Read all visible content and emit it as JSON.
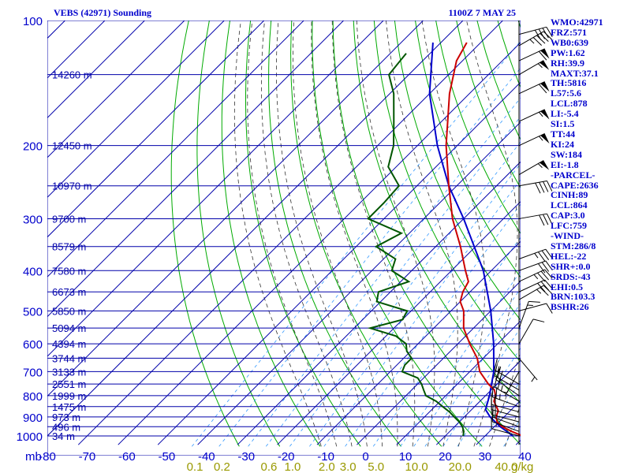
{
  "header": {
    "title": "VEBS (42971) Sounding",
    "time": "1100Z  7 MAY 25"
  },
  "indices": [
    "WMO:42971",
    "FRZ:571",
    "WB0:639",
    "PW:1.62",
    "RH:39.9",
    "MAXT:37.1",
    "TH:5816",
    "L57:5.6",
    "LCL:878",
    "LI:-5.4",
    "SI:1.5",
    "TT:44",
    "KI:24",
    "SW:184",
    "EI:-1.8",
    "-PARCEL-",
    "CAPE:2636",
    "CINH:89",
    "LCL:864",
    "CAP:3.0",
    "LFC:759",
    "-WIND-",
    "STM:286/8",
    "HEL:-22",
    "SHR+:0.0",
    "SRDS:-43",
    "EHI:0.5",
    "BRN:103.3",
    "BSHR:26"
  ],
  "colors": {
    "grid": "#0000aa",
    "isotherm": "#0000aa",
    "dry_adiabat": "#00aa00",
    "moist_adiabat": "#333333",
    "mixing_ratio": "#3399ff",
    "temperature": "#cc0000",
    "dewpoint": "#005500",
    "parcel": "#0000cc",
    "text": "#0000cc",
    "mixing_label": "#999900",
    "wind_barb": "#000000"
  },
  "chart_data": {
    "type": "skew-t",
    "title": "VEBS (42971) Sounding",
    "pressure_unit_label": "mb",
    "mixing_ratio_unit_label": "g/kg",
    "pressure_levels": [
      100,
      200,
      300,
      400,
      500,
      600,
      700,
      800,
      900,
      1000
    ],
    "pressure_tick_labels": [
      "100",
      "200",
      "300",
      "400",
      "500",
      "600",
      "700",
      "800",
      "900",
      "1000"
    ],
    "temperature_ticks": [
      -80,
      -70,
      -60,
      -50,
      -40,
      -30,
      -20,
      -10,
      0,
      10,
      20,
      30,
      40
    ],
    "temperature_tick_labels": [
      "-80",
      "-70",
      "-60",
      "-50",
      "-40",
      "-30",
      "-20",
      "-10",
      "0",
      "10",
      "20",
      "30",
      "40"
    ],
    "mixing_ratio_labels": [
      {
        "w": 0.1,
        "label": "0.1"
      },
      {
        "w": 0.2,
        "label": "0.2"
      },
      {
        "w": 0.6,
        "label": "0.6"
      },
      {
        "w": 1.0,
        "label": "1.0"
      },
      {
        "w": 2.0,
        "label": "2.0"
      },
      {
        "w": 3.0,
        "label": "3.0"
      },
      {
        "w": 5.0,
        "label": "5.0"
      },
      {
        "w": 10.0,
        "label": "10.0"
      },
      {
        "w": 20.0,
        "label": "20.0"
      },
      {
        "w": 40.0,
        "label": "40.0"
      }
    ],
    "height_labels": [
      {
        "p": 135,
        "label": "14260 m"
      },
      {
        "p": 200,
        "label": "12450 m"
      },
      {
        "p": 250,
        "label": "10970 m"
      },
      {
        "p": 300,
        "label": "9700 m"
      },
      {
        "p": 350,
        "label": "8579 m"
      },
      {
        "p": 400,
        "label": "7580 m"
      },
      {
        "p": 450,
        "label": "6673 m"
      },
      {
        "p": 500,
        "label": "5850 m"
      },
      {
        "p": 550,
        "label": "5094 m"
      },
      {
        "p": 600,
        "label": "4394 m"
      },
      {
        "p": 650,
        "label": "3744 m"
      },
      {
        "p": 700,
        "label": "3133 m"
      },
      {
        "p": 750,
        "label": "2551 m"
      },
      {
        "p": 800,
        "label": "1999 m"
      },
      {
        "p": 850,
        "label": "1475 m"
      },
      {
        "p": 900,
        "label": "973 m"
      },
      {
        "p": 950,
        "label": "496 m"
      },
      {
        "p": 1000,
        "label": "34 m"
      }
    ],
    "pressure_range": [
      100,
      1050
    ],
    "temperature_range_at_base": [
      -80,
      40
    ],
    "temperature_profile": [
      {
        "p": 1004,
        "t": 40.0
      },
      {
        "p": 975,
        "t": 35.5
      },
      {
        "p": 950,
        "t": 32.0
      },
      {
        "p": 925,
        "t": 29.5
      },
      {
        "p": 900,
        "t": 28.0
      },
      {
        "p": 870,
        "t": 27.0
      },
      {
        "p": 850,
        "t": 25.5
      },
      {
        "p": 825,
        "t": 23.5
      },
      {
        "p": 800,
        "t": 22.5
      },
      {
        "p": 775,
        "t": 20.8
      },
      {
        "p": 750,
        "t": 17.8
      },
      {
        "p": 700,
        "t": 12.5
      },
      {
        "p": 650,
        "t": 8.5
      },
      {
        "p": 600,
        "t": 3.0
      },
      {
        "p": 550,
        "t": -2.5
      },
      {
        "p": 500,
        "t": -6.8
      },
      {
        "p": 475,
        "t": -10.0
      },
      {
        "p": 450,
        "t": -11.8
      },
      {
        "p": 425,
        "t": -13.0
      },
      {
        "p": 400,
        "t": -16.5
      },
      {
        "p": 350,
        "t": -23.8
      },
      {
        "p": 300,
        "t": -32.8
      },
      {
        "p": 250,
        "t": -42.0
      },
      {
        "p": 200,
        "t": -52.8
      },
      {
        "p": 150,
        "t": -65.0
      },
      {
        "p": 125,
        "t": -71.5
      },
      {
        "p": 113,
        "t": -73.5
      }
    ],
    "dewpoint_profile": [
      {
        "p": 1000,
        "t": 24.5
      },
      {
        "p": 975,
        "t": 23.5
      },
      {
        "p": 950,
        "t": 22.0
      },
      {
        "p": 925,
        "t": 20.0
      },
      {
        "p": 900,
        "t": 17.5
      },
      {
        "p": 875,
        "t": 15.0
      },
      {
        "p": 850,
        "t": 12.0
      },
      {
        "p": 825,
        "t": 9.0
      },
      {
        "p": 800,
        "t": 5.0
      },
      {
        "p": 775,
        "t": 3.0
      },
      {
        "p": 750,
        "t": 1.0
      },
      {
        "p": 725,
        "t": -1.5
      },
      {
        "p": 700,
        "t": -7.0
      },
      {
        "p": 675,
        "t": -8.0
      },
      {
        "p": 650,
        "t": -8.0
      },
      {
        "p": 625,
        "t": -11.0
      },
      {
        "p": 600,
        "t": -13.0
      },
      {
        "p": 575,
        "t": -17.5
      },
      {
        "p": 550,
        "t": -26.0
      },
      {
        "p": 525,
        "t": -20.0
      },
      {
        "p": 500,
        "t": -21.0
      },
      {
        "p": 475,
        "t": -31.0
      },
      {
        "p": 450,
        "t": -33.0
      },
      {
        "p": 425,
        "t": -28.0
      },
      {
        "p": 400,
        "t": -35.0
      },
      {
        "p": 375,
        "t": -37.0
      },
      {
        "p": 350,
        "t": -45.0
      },
      {
        "p": 325,
        "t": -42.0
      },
      {
        "p": 300,
        "t": -54.0
      },
      {
        "p": 275,
        "t": -54.0
      },
      {
        "p": 250,
        "t": -54.5
      },
      {
        "p": 225,
        "t": -62.0
      },
      {
        "p": 200,
        "t": -66.0
      },
      {
        "p": 175,
        "t": -72.0
      },
      {
        "p": 150,
        "t": -79.0
      },
      {
        "p": 135,
        "t": -85.0
      },
      {
        "p": 120,
        "t": -86.0
      }
    ],
    "parcel_profile": [
      {
        "p": 1000,
        "t": 37.0
      },
      {
        "p": 950,
        "t": 31.5
      },
      {
        "p": 900,
        "t": 26.5
      },
      {
        "p": 864,
        "t": 23.5
      },
      {
        "p": 800,
        "t": 21.0
      },
      {
        "p": 700,
        "t": 16.0
      },
      {
        "p": 600,
        "t": 9.0
      },
      {
        "p": 500,
        "t": 0.0
      },
      {
        "p": 400,
        "t": -12.0
      },
      {
        "p": 300,
        "t": -30.0
      },
      {
        "p": 250,
        "t": -42.0
      },
      {
        "p": 200,
        "t": -55.0
      },
      {
        "p": 150,
        "t": -70.0
      },
      {
        "p": 113,
        "t": -82.0
      }
    ],
    "dry_adiabat_thetas": [
      240,
      250,
      260,
      270,
      280,
      290,
      300,
      310,
      320,
      330,
      340,
      350,
      360,
      370,
      380,
      390,
      400,
      410,
      420,
      430,
      440,
      450,
      460,
      470,
      480,
      490,
      500,
      510,
      520,
      530,
      540,
      550,
      560,
      570,
      580
    ],
    "moist_adiabat_temps_at_1000": [
      -12,
      -8,
      -4,
      0,
      4,
      8,
      12,
      16,
      20,
      24,
      28,
      32,
      36
    ],
    "mixing_ratios": [
      0.1,
      0.2,
      0.4,
      0.6,
      1.0,
      1.5,
      2.0,
      3.0,
      5.0,
      8.0,
      10.0,
      12.0,
      16.0,
      20.0,
      28.0,
      40.0
    ],
    "wind_barbs": [
      {
        "p": 1000,
        "dir": 285,
        "spd": 8
      },
      {
        "p": 975,
        "dir": 290,
        "spd": 10
      },
      {
        "p": 950,
        "dir": 290,
        "spd": 12
      },
      {
        "p": 925,
        "dir": 285,
        "spd": 15
      },
      {
        "p": 900,
        "dir": 285,
        "spd": 20
      },
      {
        "p": 875,
        "dir": 285,
        "spd": 22
      },
      {
        "p": 850,
        "dir": 290,
        "spd": 25
      },
      {
        "p": 825,
        "dir": 300,
        "spd": 25
      },
      {
        "p": 800,
        "dir": 305,
        "spd": 20
      },
      {
        "p": 775,
        "dir": 300,
        "spd": 18
      },
      {
        "p": 750,
        "dir": 300,
        "spd": 16
      },
      {
        "p": 700,
        "dir": 210,
        "spd": 5
      },
      {
        "p": 650,
        "dir": 140,
        "spd": 3
      },
      {
        "p": 600,
        "dir": 30,
        "spd": 10
      },
      {
        "p": 550,
        "dir": 20,
        "spd": 15
      },
      {
        "p": 500,
        "dir": 75,
        "spd": 10
      },
      {
        "p": 470,
        "dir": 60,
        "spd": 25
      },
      {
        "p": 450,
        "dir": 65,
        "spd": 30
      },
      {
        "p": 425,
        "dir": 65,
        "spd": 35
      },
      {
        "p": 400,
        "dir": 70,
        "spd": 30
      },
      {
        "p": 375,
        "dir": 70,
        "spd": 35
      },
      {
        "p": 300,
        "dir": 80,
        "spd": 30
      },
      {
        "p": 250,
        "dir": 80,
        "spd": 40
      },
      {
        "p": 235,
        "dir": 60,
        "spd": 55
      },
      {
        "p": 200,
        "dir": 65,
        "spd": 55
      },
      {
        "p": 175,
        "dir": 65,
        "spd": 55
      },
      {
        "p": 150,
        "dir": 65,
        "spd": 60
      },
      {
        "p": 135,
        "dir": 60,
        "spd": 55
      },
      {
        "p": 125,
        "dir": 65,
        "spd": 60
      },
      {
        "p": 115,
        "dir": 60,
        "spd": 45
      },
      {
        "p": 108,
        "dir": 75,
        "spd": 40
      }
    ]
  }
}
